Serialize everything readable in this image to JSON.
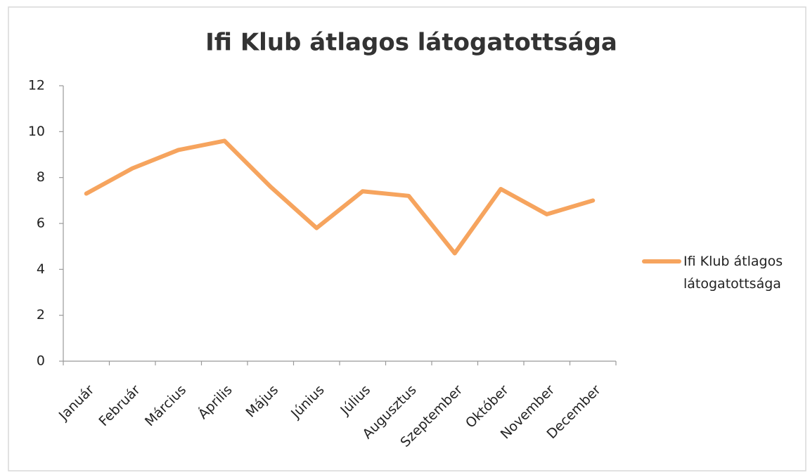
{
  "chart_data": {
    "type": "line",
    "title": "Ifi Klub átlagos látogatottsága",
    "categories": [
      "Január",
      "Február",
      "Március",
      "Április",
      "Május",
      "Június",
      "Július",
      "Augusztus",
      "Szeptember",
      "Október",
      "November",
      "December"
    ],
    "series": [
      {
        "name": "Ifi Klub átlagos látogatottsága",
        "color": "#f6a45e",
        "values": [
          7.3,
          8.4,
          9.2,
          9.6,
          7.6,
          5.8,
          7.4,
          7.2,
          4.7,
          7.5,
          6.4,
          7.0
        ]
      }
    ],
    "ylim": [
      0,
      12
    ],
    "yticks": [
      0,
      2,
      4,
      6,
      8,
      10,
      12
    ],
    "grid": false,
    "legend": "right"
  }
}
